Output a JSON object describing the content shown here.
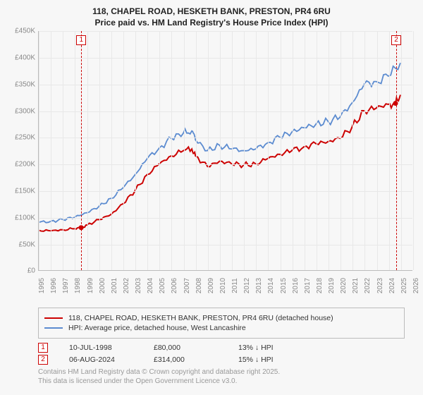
{
  "titles": {
    "line1": "118, CHAPEL ROAD, HESKETH BANK, PRESTON, PR4 6RU",
    "line2": "Price paid vs. HM Land Registry's House Price Index (HPI)"
  },
  "chart": {
    "type": "line",
    "background_color": "#f7f7f7",
    "grid_color": "#e8e8e8",
    "axis_color": "#bbbbbb",
    "tick_font_color": "#888888",
    "tick_fontsize": 10,
    "x": {
      "min": 1995,
      "max": 2026,
      "ticks": [
        1995,
        1996,
        1997,
        1998,
        1999,
        2000,
        2001,
        2002,
        2003,
        2004,
        2005,
        2006,
        2007,
        2008,
        2009,
        2010,
        2011,
        2012,
        2013,
        2014,
        2015,
        2016,
        2017,
        2018,
        2019,
        2020,
        2021,
        2022,
        2023,
        2024,
        2025,
        2026
      ]
    },
    "y": {
      "min": 0,
      "max": 450000,
      "tick_step": 50000,
      "tick_labels": [
        "£0",
        "£50K",
        "£100K",
        "£150K",
        "£200K",
        "£250K",
        "£300K",
        "£350K",
        "£400K",
        "£450K"
      ],
      "tick_values": [
        0,
        50000,
        100000,
        150000,
        200000,
        250000,
        300000,
        350000,
        400000,
        450000
      ]
    },
    "series": [
      {
        "key": "price_paid",
        "label": "118, CHAPEL ROAD, HESKETH BANK, PRESTON, PR4 6RU (detached house)",
        "color": "#cc0000",
        "line_width": 2,
        "data": [
          [
            1995,
            75000
          ],
          [
            1996,
            74000
          ],
          [
            1997,
            76000
          ],
          [
            1998,
            78000
          ],
          [
            1998.52,
            80000
          ],
          [
            1999,
            85000
          ],
          [
            2000,
            95000
          ],
          [
            2001,
            105000
          ],
          [
            2002,
            125000
          ],
          [
            2003,
            150000
          ],
          [
            2004,
            180000
          ],
          [
            2005,
            200000
          ],
          [
            2006,
            215000
          ],
          [
            2007,
            225000
          ],
          [
            2007.7,
            228000
          ],
          [
            2008,
            215000
          ],
          [
            2009,
            195000
          ],
          [
            2010,
            205000
          ],
          [
            2011,
            200000
          ],
          [
            2012,
            198000
          ],
          [
            2013,
            200000
          ],
          [
            2014,
            210000
          ],
          [
            2015,
            218000
          ],
          [
            2016,
            225000
          ],
          [
            2017,
            232000
          ],
          [
            2018,
            238000
          ],
          [
            2019,
            242000
          ],
          [
            2020,
            248000
          ],
          [
            2021,
            270000
          ],
          [
            2022,
            300000
          ],
          [
            2023,
            305000
          ],
          [
            2024,
            312000
          ],
          [
            2024.6,
            314000
          ],
          [
            2025,
            330000
          ]
        ]
      },
      {
        "key": "hpi",
        "label": "HPI: Average price, detached house, West Lancashire",
        "color": "#5b8bd0",
        "line_width": 1.8,
        "data": [
          [
            1995,
            90000
          ],
          [
            1996,
            92000
          ],
          [
            1997,
            95000
          ],
          [
            1998,
            100000
          ],
          [
            1999,
            108000
          ],
          [
            2000,
            120000
          ],
          [
            2001,
            135000
          ],
          [
            2002,
            155000
          ],
          [
            2003,
            180000
          ],
          [
            2004,
            210000
          ],
          [
            2005,
            230000
          ],
          [
            2006,
            248000
          ],
          [
            2007,
            258000
          ],
          [
            2007.7,
            262000
          ],
          [
            2008,
            245000
          ],
          [
            2009,
            225000
          ],
          [
            2010,
            235000
          ],
          [
            2011,
            228000
          ],
          [
            2012,
            225000
          ],
          [
            2013,
            228000
          ],
          [
            2014,
            240000
          ],
          [
            2015,
            250000
          ],
          [
            2016,
            260000
          ],
          [
            2017,
            268000
          ],
          [
            2018,
            275000
          ],
          [
            2019,
            280000
          ],
          [
            2020,
            288000
          ],
          [
            2021,
            315000
          ],
          [
            2022,
            350000
          ],
          [
            2023,
            355000
          ],
          [
            2024,
            365000
          ],
          [
            2025,
            390000
          ]
        ]
      }
    ],
    "markers": [
      {
        "id": "1",
        "x": 1998.52,
        "color": "#cc0000",
        "dot_y": 80000,
        "date": "10-JUL-1998",
        "price": "£80,000",
        "delta": "13% ↓ HPI"
      },
      {
        "id": "2",
        "x": 2024.6,
        "color": "#cc0000",
        "dot_y": 314000,
        "date": "06-AUG-2024",
        "price": "£314,000",
        "delta": "15% ↓ HPI"
      }
    ]
  },
  "footer": {
    "line1": "Contains HM Land Registry data © Crown copyright and database right 2025.",
    "line2": "This data is licensed under the Open Government Licence v3.0."
  }
}
